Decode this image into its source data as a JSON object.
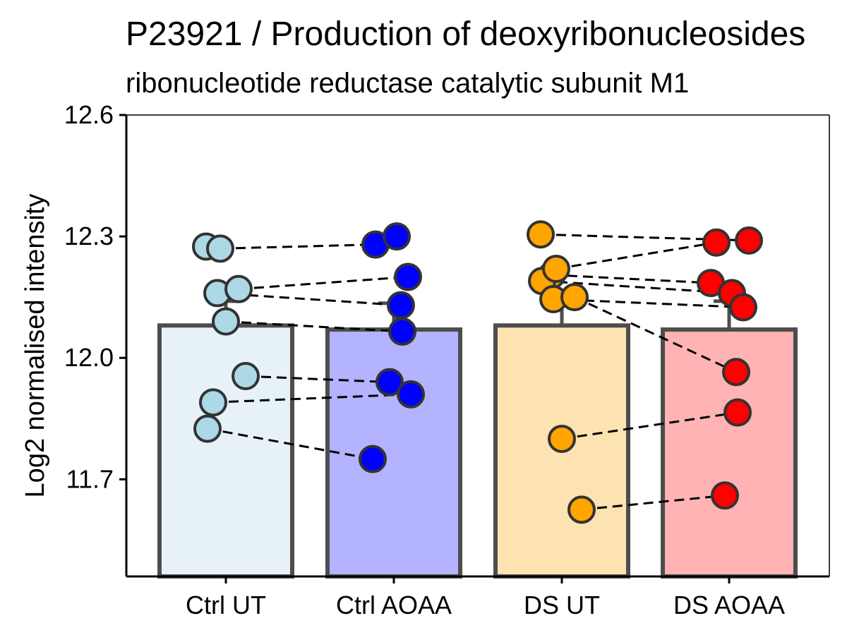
{
  "chart_data": {
    "type": "bar",
    "title": "P23921 / Production of deoxyribonucleosides",
    "subtitle": "ribonucleotide reductase catalytic subunit M1",
    "xlabel": "",
    "ylabel": "Log2 normalised intensity",
    "ylim": [
      11.46,
      12.6
    ],
    "yticks": [
      "11.7",
      "12.0",
      "12.3",
      "12.6"
    ],
    "grid": false,
    "legend": "none",
    "categories": [
      "Ctrl UT",
      "Ctrl AOAA",
      "DS UT",
      "DS AOAA"
    ],
    "values": [
      12.08,
      12.07,
      12.08,
      12.07
    ],
    "error_upper": [
      12.14,
      12.135,
      12.135,
      12.14
    ],
    "bar_fill_colors": [
      "#e6f2f8",
      "#b3b3ff",
      "#fde2b2",
      "#ffb3b3"
    ],
    "point_colors": [
      "#add8e6",
      "#0000ff",
      "#ffa500",
      "#ff0000"
    ],
    "bar_border_color": "#4d4d4d",
    "points": [
      [
        12.275,
        12.27,
        12.16,
        12.17,
        12.09,
        11.955,
        11.89,
        11.825
      ],
      [
        12.28,
        12.3,
        12.2,
        12.13,
        12.065,
        11.94,
        11.91,
        11.75
      ],
      [
        12.305,
        12.205,
        12.19,
        12.22,
        12.145,
        12.15,
        11.8,
        11.625
      ],
      [
        12.29,
        12.285,
        12.185,
        12.16,
        12.125,
        11.965,
        11.865,
        11.66
      ]
    ],
    "pairs": [
      {
        "from": [
          0,
          12.27
        ],
        "to": [
          1,
          12.28
        ]
      },
      {
        "from": [
          0,
          12.17
        ],
        "to": [
          1,
          12.2
        ]
      },
      {
        "from": [
          0,
          12.16
        ],
        "to": [
          1,
          12.13
        ]
      },
      {
        "from": [
          0,
          12.09
        ],
        "to": [
          1,
          12.065
        ]
      },
      {
        "from": [
          0,
          11.955
        ],
        "to": [
          1,
          11.94
        ]
      },
      {
        "from": [
          0,
          11.89
        ],
        "to": [
          1,
          11.91
        ]
      },
      {
        "from": [
          0,
          11.825
        ],
        "to": [
          1,
          11.75
        ]
      },
      {
        "from": [
          2,
          12.305
        ],
        "to": [
          3,
          12.29
        ]
      },
      {
        "from": [
          2,
          12.22
        ],
        "to": [
          3,
          12.285
        ]
      },
      {
        "from": [
          2,
          12.205
        ],
        "to": [
          3,
          12.185
        ]
      },
      {
        "from": [
          2,
          12.19
        ],
        "to": [
          3,
          12.16
        ]
      },
      {
        "from": [
          2,
          12.145
        ],
        "to": [
          3,
          12.125
        ]
      },
      {
        "from": [
          2,
          12.15
        ],
        "to": [
          3,
          11.965
        ]
      },
      {
        "from": [
          2,
          11.8
        ],
        "to": [
          3,
          11.865
        ]
      },
      {
        "from": [
          2,
          11.625
        ],
        "to": [
          3,
          11.66
        ]
      }
    ]
  }
}
